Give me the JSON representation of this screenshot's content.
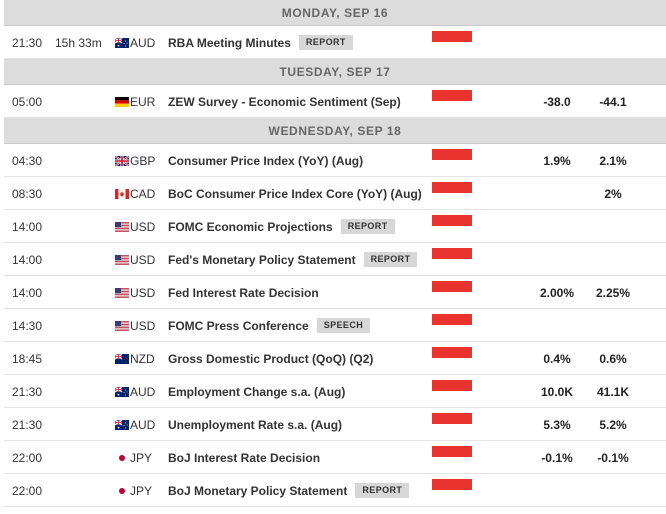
{
  "days": [
    {
      "header": "MONDAY, SEP 16",
      "events": [
        {
          "time": "21:30",
          "countdown": "15h 33m",
          "flag_icon": "australia-flag-icon",
          "currency": "AUD",
          "event": "RBA Meeting Minutes",
          "badge": "REPORT",
          "impact": "high",
          "actual": "",
          "forecast": ""
        }
      ]
    },
    {
      "header": "TUESDAY, SEP 17",
      "events": [
        {
          "time": "05:00",
          "countdown": "",
          "flag_icon": "germany-flag-icon",
          "currency": "EUR",
          "event": "ZEW Survey - Economic Sentiment (Sep)",
          "badge": "",
          "impact": "high",
          "actual": "-38.0",
          "forecast": "-44.1"
        }
      ]
    },
    {
      "header": "WEDNESDAY, SEP 18",
      "events": [
        {
          "time": "04:30",
          "countdown": "",
          "flag_icon": "uk-flag-icon",
          "currency": "GBP",
          "event": "Consumer Price Index (YoY) (Aug)",
          "badge": "",
          "impact": "high",
          "actual": "1.9%",
          "forecast": "2.1%"
        },
        {
          "time": "08:30",
          "countdown": "",
          "flag_icon": "canada-flag-icon",
          "currency": "CAD",
          "event": "BoC Consumer Price Index Core (YoY) (Aug)",
          "badge": "",
          "impact": "high",
          "actual": "",
          "forecast": "2%"
        },
        {
          "time": "14:00",
          "countdown": "",
          "flag_icon": "usa-flag-icon",
          "currency": "USD",
          "event": "FOMC Economic Projections",
          "badge": "REPORT",
          "impact": "high",
          "actual": "",
          "forecast": ""
        },
        {
          "time": "14:00",
          "countdown": "",
          "flag_icon": "usa-flag-icon",
          "currency": "USD",
          "event": "Fed's Monetary Policy Statement",
          "badge": "REPORT",
          "impact": "high",
          "actual": "",
          "forecast": ""
        },
        {
          "time": "14:00",
          "countdown": "",
          "flag_icon": "usa-flag-icon",
          "currency": "USD",
          "event": "Fed Interest Rate Decision",
          "badge": "",
          "impact": "high",
          "actual": "2.00%",
          "forecast": "2.25%"
        },
        {
          "time": "14:30",
          "countdown": "",
          "flag_icon": "usa-flag-icon",
          "currency": "USD",
          "event": "FOMC Press Conference",
          "badge": "SPEECH",
          "impact": "high",
          "actual": "",
          "forecast": ""
        },
        {
          "time": "18:45",
          "countdown": "",
          "flag_icon": "new-zealand-flag-icon",
          "currency": "NZD",
          "event": "Gross Domestic Product (QoQ) (Q2)",
          "badge": "",
          "impact": "high",
          "actual": "0.4%",
          "forecast": "0.6%"
        },
        {
          "time": "21:30",
          "countdown": "",
          "flag_icon": "australia-flag-icon",
          "currency": "AUD",
          "event": "Employment Change s.a. (Aug)",
          "badge": "",
          "impact": "high",
          "actual": "10.0K",
          "forecast": "41.1K"
        },
        {
          "time": "21:30",
          "countdown": "",
          "flag_icon": "australia-flag-icon",
          "currency": "AUD",
          "event": "Unemployment Rate s.a. (Aug)",
          "badge": "",
          "impact": "high",
          "actual": "5.3%",
          "forecast": "5.2%"
        },
        {
          "time": "22:00",
          "countdown": "",
          "flag_icon": "japan-flag-icon",
          "currency": "JPY",
          "event": "BoJ Interest Rate Decision",
          "badge": "",
          "impact": "high",
          "actual": "-0.1%",
          "forecast": "-0.1%"
        },
        {
          "time": "22:00",
          "countdown": "",
          "flag_icon": "japan-flag-icon",
          "currency": "JPY",
          "event": "BoJ Monetary Policy Statement",
          "badge": "REPORT",
          "impact": "high",
          "actual": "",
          "forecast": ""
        }
      ]
    }
  ],
  "colors": {
    "impact_high": "#e8332e",
    "header_bg": "#dcdcdc",
    "badge_bg": "#d7d7d7"
  }
}
